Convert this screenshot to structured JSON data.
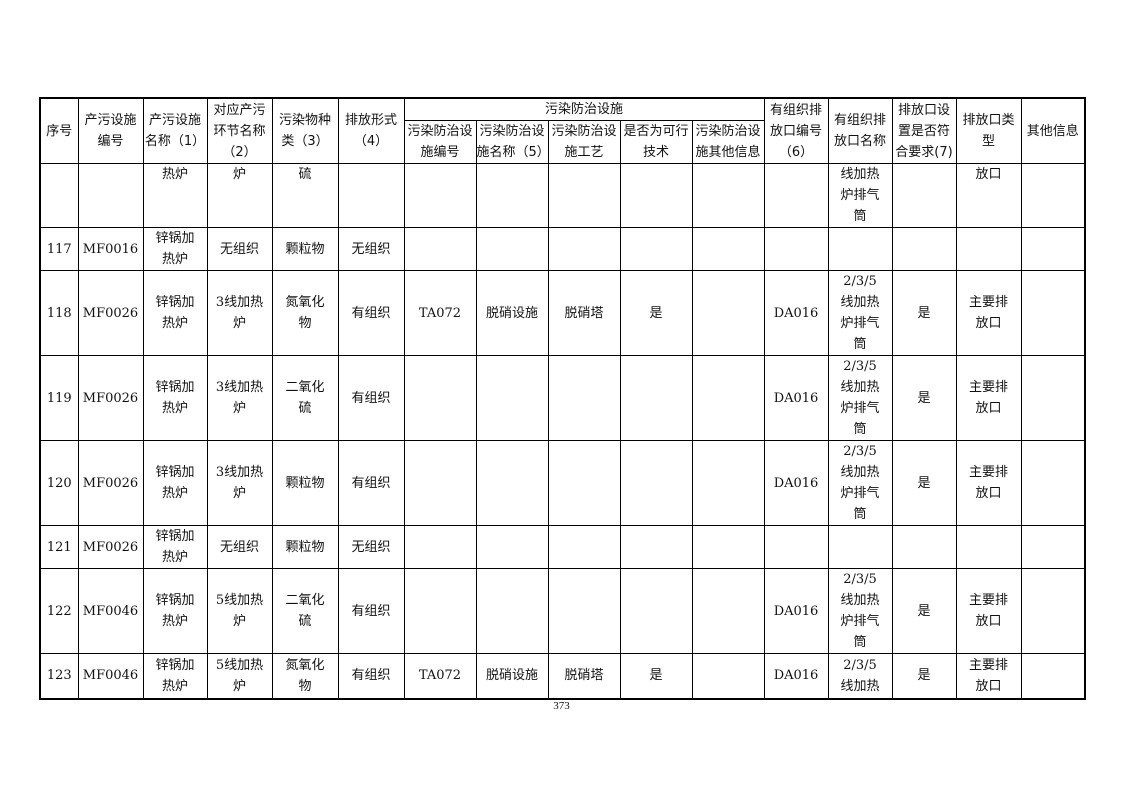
{
  "header": {
    "seq": "序号",
    "facility_id": "产污设施\n编号",
    "facility_name": "产污设施\n名称（1）",
    "process": "对应产污\n环节名称\n（2）",
    "pollutant": "污染物种\n类（3）",
    "emission_form": "排放形式\n（4）",
    "control_group": "污染防治设施",
    "control_id": "污染防治设\n施编号",
    "control_name": "污染防治设\n施名称（5）",
    "control_tech": "污染防治设\n施工艺",
    "feasible": "是否为可行\n技术",
    "control_other": "污染防治设\n施其他信息",
    "outlet_id": "有组织排\n放口编号\n（6）",
    "outlet_name": "有组织排\n放口名称",
    "outlet_compliant": "排放口设\n置是否符\n合要求(7)",
    "outlet_type": "排放口类\n型",
    "other": "其他信息"
  },
  "rows": [
    [
      "",
      "",
      "热炉",
      "炉",
      "硫",
      "",
      "",
      "",
      "",
      "",
      "",
      "",
      "线加热\n炉排气\n筒",
      "",
      "放口",
      ""
    ],
    [
      "117",
      "MF0016",
      "锌锅加\n热炉",
      "无组织",
      "颗粒物",
      "无组织",
      "",
      "",
      "",
      "",
      "",
      "",
      "",
      "",
      "",
      ""
    ],
    [
      "118",
      "MF0026",
      "锌锅加\n热炉",
      "3线加热\n炉",
      "氮氧化\n物",
      "有组织",
      "TA072",
      "脱硝设施",
      "脱硝塔",
      "是",
      "",
      "DA016",
      "2/3/5\n线加热\n炉排气\n筒",
      "是",
      "主要排\n放口",
      ""
    ],
    [
      "119",
      "MF0026",
      "锌锅加\n热炉",
      "3线加热\n炉",
      "二氧化\n硫",
      "有组织",
      "",
      "",
      "",
      "",
      "",
      "DA016",
      "2/3/5\n线加热\n炉排气\n筒",
      "是",
      "主要排\n放口",
      ""
    ],
    [
      "120",
      "MF0026",
      "锌锅加\n热炉",
      "3线加热\n炉",
      "颗粒物",
      "有组织",
      "",
      "",
      "",
      "",
      "",
      "DA016",
      "2/3/5\n线加热\n炉排气\n筒",
      "是",
      "主要排\n放口",
      ""
    ],
    [
      "121",
      "MF0026",
      "锌锅加\n热炉",
      "无组织",
      "颗粒物",
      "无组织",
      "",
      "",
      "",
      "",
      "",
      "",
      "",
      "",
      "",
      ""
    ],
    [
      "122",
      "MF0046",
      "锌锅加\n热炉",
      "5线加热\n炉",
      "二氧化\n硫",
      "有组织",
      "",
      "",
      "",
      "",
      "",
      "DA016",
      "2/3/5\n线加热\n炉排气\n筒",
      "是",
      "主要排\n放口",
      ""
    ],
    [
      "123",
      "MF0046",
      "锌锅加\n热炉",
      "5线加热\n炉",
      "氮氧化\n物",
      "有组织",
      "TA072",
      "脱硝设施",
      "脱硝塔",
      "是",
      "",
      "DA016",
      "2/3/5\n线加热",
      "是",
      "主要排\n放口",
      ""
    ]
  ],
  "page_number": "373"
}
